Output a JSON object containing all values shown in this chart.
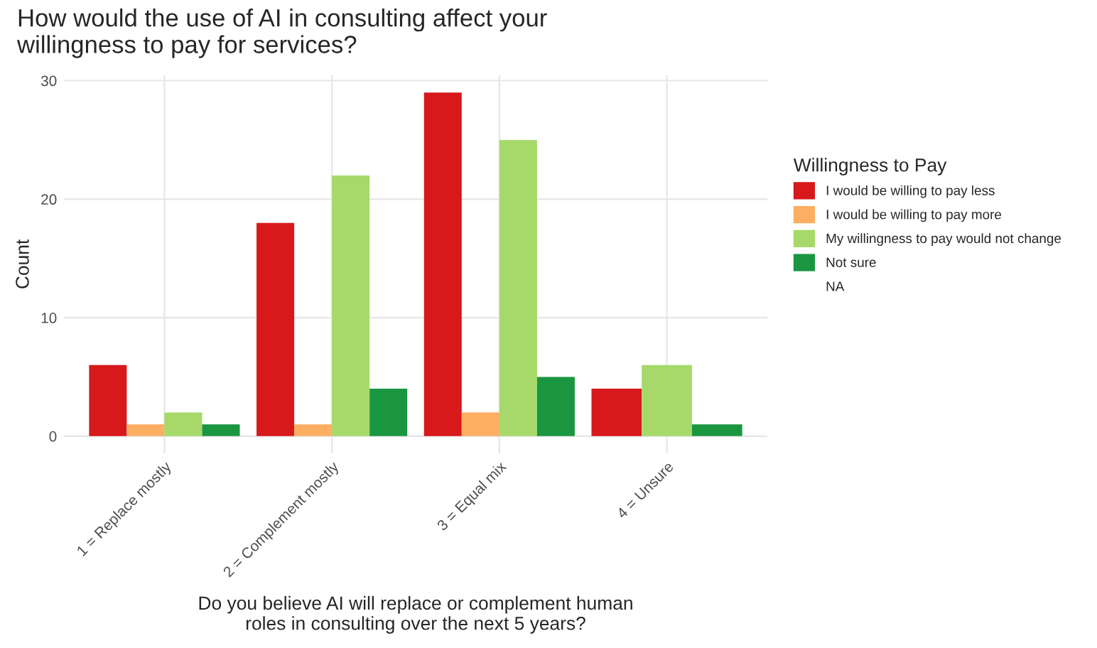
{
  "chart_data": {
    "type": "bar",
    "title": "How would the use of AI in consulting affect your\nwillingness to pay for services?",
    "xlabel": "Do you believe AI will replace or complement human\nroles in consulting over the next 5 years?",
    "ylabel": "Count",
    "legend_title": "Willingness to Pay",
    "categories": [
      "1 = Replace mostly",
      "2 = Complement mostly",
      "3 = Equal mix",
      "4 = Unsure"
    ],
    "series": [
      {
        "name": "I would be willing to pay less",
        "color": "#d7191c",
        "values": [
          6,
          18,
          29,
          4
        ]
      },
      {
        "name": "I would be willing to pay more",
        "color": "#fdae61",
        "values": [
          1,
          1,
          2,
          null
        ]
      },
      {
        "name": "My willingness to pay would not change",
        "color": "#a6d96a",
        "values": [
          2,
          22,
          25,
          6
        ]
      },
      {
        "name": "Not sure",
        "color": "#1a9641",
        "values": [
          1,
          4,
          5,
          1
        ]
      },
      {
        "name": "NA",
        "values": [
          null,
          null,
          null,
          null
        ]
      }
    ],
    "ylim": [
      -1.45,
      30.45
    ],
    "yticks": [
      0,
      10,
      20,
      30
    ],
    "grid": true,
    "legend": "right"
  }
}
